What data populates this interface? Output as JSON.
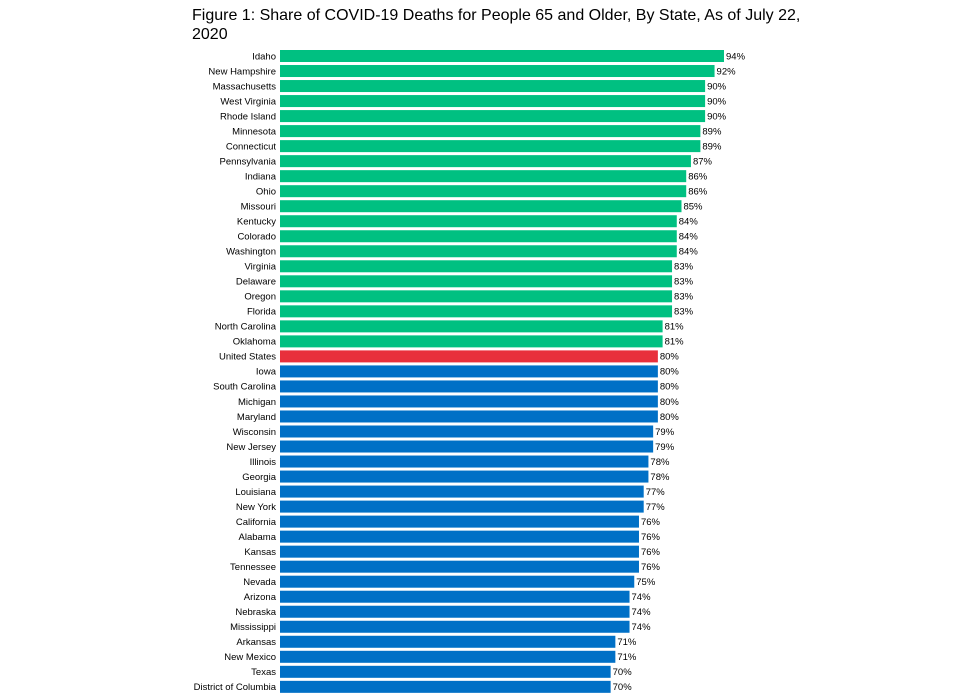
{
  "chart_data": {
    "type": "bar",
    "orientation": "horizontal",
    "title": "Figure 1: Share of COVID-19 Deaths for People 65 and Older, By State, As of July 22, 2020",
    "xlabel": "",
    "ylabel": "",
    "grid": false,
    "xlim": [
      0,
      100
    ],
    "value_suffix": "%",
    "categories": [
      "Idaho",
      "New Hampshire",
      "Massachusetts",
      "West Virginia",
      "Rhode Island",
      "Minnesota",
      "Connecticut",
      "Pennsylvania",
      "Indiana",
      "Ohio",
      "Missouri",
      "Kentucky",
      "Colorado",
      "Washington",
      "Virginia",
      "Delaware",
      "Oregon",
      "Florida",
      "North Carolina",
      "Oklahoma",
      "United States",
      "Iowa",
      "South Carolina",
      "Michigan",
      "Maryland",
      "Wisconsin",
      "New Jersey",
      "Illinois",
      "Georgia",
      "Louisiana",
      "New York",
      "California",
      "Alabama",
      "Kansas",
      "Tennessee",
      "Nevada",
      "Arizona",
      "Nebraska",
      "Mississippi",
      "Arkansas",
      "New Mexico",
      "Texas",
      "District of Columbia"
    ],
    "values": [
      94,
      92,
      90,
      90,
      90,
      89,
      89,
      87,
      86,
      86,
      85,
      84,
      84,
      84,
      83,
      83,
      83,
      83,
      81,
      81,
      80,
      80,
      80,
      80,
      80,
      79,
      79,
      78,
      78,
      77,
      77,
      76,
      76,
      76,
      76,
      75,
      74,
      74,
      74,
      71,
      71,
      70,
      70
    ],
    "bar_groups": [
      "above",
      "above",
      "above",
      "above",
      "above",
      "above",
      "above",
      "above",
      "above",
      "above",
      "above",
      "above",
      "above",
      "above",
      "above",
      "above",
      "above",
      "above",
      "above",
      "above",
      "national",
      "below",
      "below",
      "below",
      "below",
      "below",
      "below",
      "below",
      "below",
      "below",
      "below",
      "below",
      "below",
      "below",
      "below",
      "below",
      "below",
      "below",
      "below",
      "below",
      "below",
      "below",
      "below"
    ],
    "colors": {
      "above": "#00c081",
      "national": "#e8303c",
      "below": "#0070c6"
    }
  }
}
